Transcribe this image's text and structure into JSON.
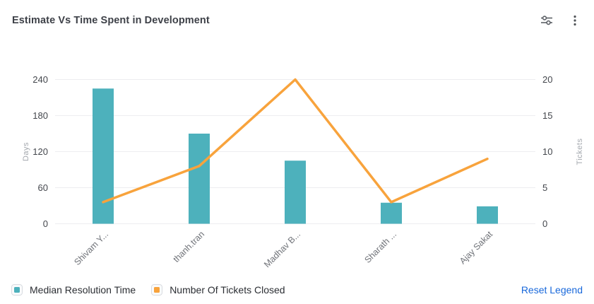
{
  "header": {
    "title": "Estimate Vs Time Spent in Development"
  },
  "chart_data": {
    "type": "combo-bar-line",
    "title": "Estimate Vs Time Spent in Development",
    "categories": [
      "Shivam Y...",
      "thanh.tran",
      "Madhav B...",
      "Sharath ...",
      "Ajay Sakat"
    ],
    "series": [
      {
        "name": "Median Resolution Time",
        "type": "bar",
        "axis": "left",
        "color": "#4db1bc",
        "values": [
          225,
          150,
          105,
          35,
          29
        ]
      },
      {
        "name": "Number Of Tickets Closed",
        "type": "line",
        "axis": "right",
        "color": "#f8a33c",
        "values": [
          3,
          8,
          20,
          3,
          9
        ]
      }
    ],
    "left_axis": {
      "label": "Days",
      "ticks": [
        0,
        60,
        120,
        180,
        240
      ],
      "max": 240
    },
    "right_axis": {
      "label": "Tickets",
      "ticks": [
        0,
        5,
        10,
        15,
        20
      ],
      "max": 20
    },
    "grid": true,
    "legend_position": "bottom"
  },
  "legend": {
    "items": [
      {
        "label": "Median Resolution Time",
        "color": "#4db1bc"
      },
      {
        "label": "Number Of Tickets Closed",
        "color": "#f8a33c"
      }
    ],
    "reset_label": "Reset Legend"
  },
  "icons": {
    "settings": "sliders-icon",
    "menu": "kebab-menu-icon"
  },
  "colors": {
    "bar": "#4db1bc",
    "line": "#f8a33c",
    "link": "#1868db"
  }
}
